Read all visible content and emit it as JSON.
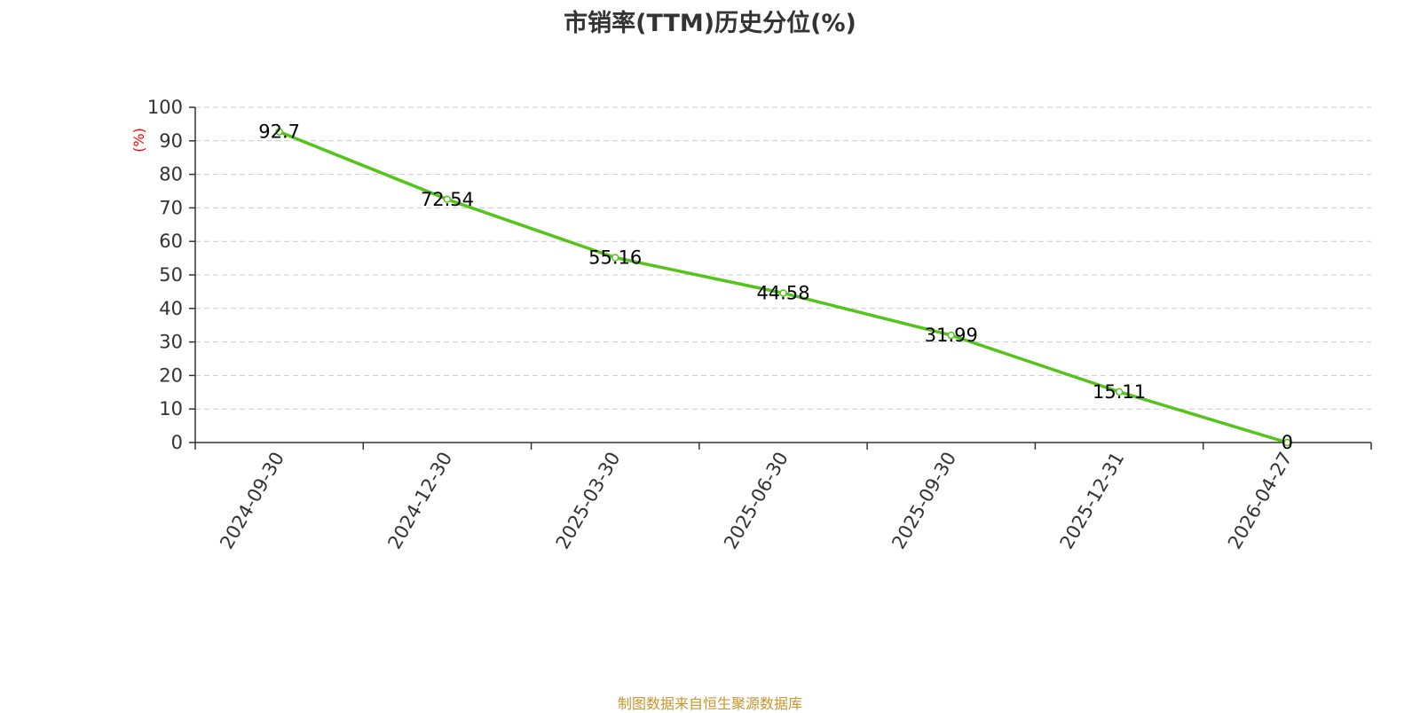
{
  "chart_data": {
    "type": "line",
    "title": "市销率(TTM)历史分位(%)",
    "ylabel": "(%)",
    "xlabel": "",
    "categories": [
      "2024-09-30",
      "2024-12-30",
      "2025-03-30",
      "2025-06-30",
      "2025-09-30",
      "2025-12-31",
      "2026-04-27"
    ],
    "series": [
      {
        "values": [
          92.7,
          72.54,
          55.16,
          44.58,
          31.99,
          15.11,
          0
        ]
      }
    ],
    "data_labels": [
      "92.7",
      "72.54",
      "55.16",
      "44.58",
      "31.99",
      "15.11",
      "0"
    ],
    "yticks": [
      "0",
      "10",
      "20",
      "30",
      "40",
      "50",
      "60",
      "70",
      "80",
      "90",
      "100"
    ],
    "ylim": [
      0,
      100
    ],
    "grid": true,
    "colors": {
      "line": "#52c41a",
      "axis": "#333333",
      "grid": "#cccccc",
      "ylabel": "#ff0000",
      "source": "#c8962c"
    }
  },
  "source_note": "制图数据来自恒生聚源数据库"
}
